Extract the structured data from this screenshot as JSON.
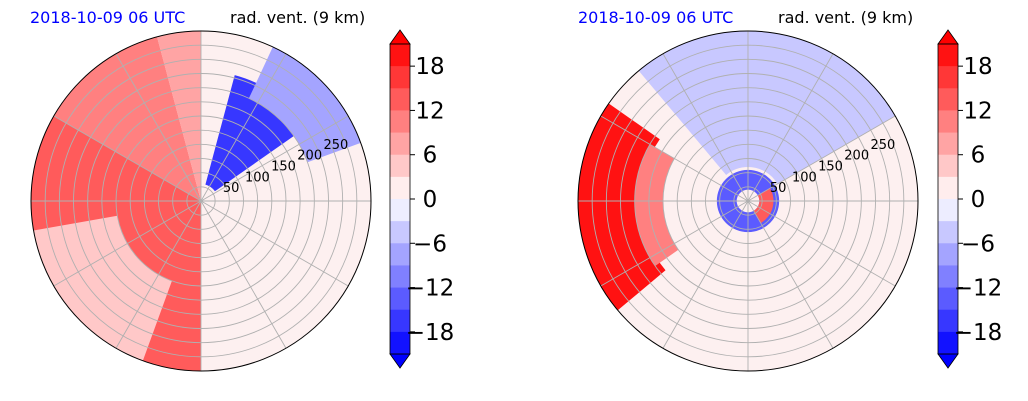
{
  "colors": {
    "positive": "#ff0000",
    "negative": "#0000ff",
    "neutral": "#ffffff",
    "title_left": "#0000ff",
    "grid": "#b0b0b0"
  },
  "chart_data": [
    {
      "type": "polar-contour",
      "title_left": "2018-10-09 06 UTC",
      "title_right": "rad. vent. (9 km)",
      "radial_ticks": [
        "50",
        "100",
        "150",
        "200",
        "250"
      ],
      "r_max": 300,
      "colorbar": {
        "ticks": [
          "18",
          "12",
          "6",
          "0",
          "−6",
          "−12",
          "−18"
        ],
        "tick_values": [
          18,
          12,
          6,
          0,
          -6,
          -12,
          -18
        ],
        "range": [
          -21,
          21
        ],
        "extend": "both",
        "colormap": "bwr"
      },
      "fields": [
        {
          "desc": "strong outflow west",
          "az_from": 180,
          "az_to": 300,
          "r_from": 0,
          "r_to": 300,
          "value": 12
        },
        {
          "desc": "outflow northwest",
          "az_from": 300,
          "az_to": 345,
          "r_from": 0,
          "r_to": 300,
          "value": 10
        },
        {
          "desc": "outflow north",
          "az_from": 345,
          "az_to": 360,
          "r_from": 0,
          "r_to": 300,
          "value": 8
        },
        {
          "desc": "inflow northeast band",
          "az_from": 15,
          "az_to": 55,
          "r_from": 30,
          "r_to": 230,
          "value": -16
        },
        {
          "desc": "weak inflow northeast",
          "az_from": 25,
          "az_to": 70,
          "r_from": 200,
          "r_to": 300,
          "value": -8
        },
        {
          "desc": "weak outflow southwest",
          "az_from": 200,
          "az_to": 260,
          "r_from": 150,
          "r_to": 300,
          "value": 5
        }
      ]
    },
    {
      "type": "polar-contour",
      "title_left": "2018-10-09 06 UTC",
      "title_right": "rad. vent. (9 km)",
      "radial_ticks": [
        "50",
        "100",
        "150",
        "200",
        "250"
      ],
      "r_max": 300,
      "colorbar": {
        "ticks": [
          "18",
          "12",
          "6",
          "0",
          "−6",
          "−12",
          "−18"
        ],
        "tick_values": [
          18,
          12,
          6,
          0,
          -6,
          -12,
          -18
        ],
        "range": [
          -21,
          21
        ],
        "extend": "both",
        "colormap": "bwr"
      },
      "fields": [
        {
          "desc": "strong outflow west",
          "az_from": 230,
          "az_to": 305,
          "r_from": 190,
          "r_to": 300,
          "value": 18
        },
        {
          "desc": "outflow west inner",
          "az_from": 235,
          "az_to": 300,
          "r_from": 150,
          "r_to": 200,
          "value": 9
        },
        {
          "desc": "weak inflow north",
          "az_from": 320,
          "az_to": 360,
          "r_from": 60,
          "r_to": 300,
          "value": -5
        },
        {
          "desc": "weak inflow northeast",
          "az_from": 0,
          "az_to": 60,
          "r_from": 60,
          "r_to": 300,
          "value": -5
        },
        {
          "desc": "eyewall inflow",
          "az_from": 0,
          "az_to": 360,
          "r_from": 20,
          "r_to": 55,
          "value": -12
        },
        {
          "desc": "eyewall outflow",
          "az_from": 60,
          "az_to": 150,
          "r_from": 20,
          "r_to": 45,
          "value": 14
        }
      ]
    }
  ]
}
